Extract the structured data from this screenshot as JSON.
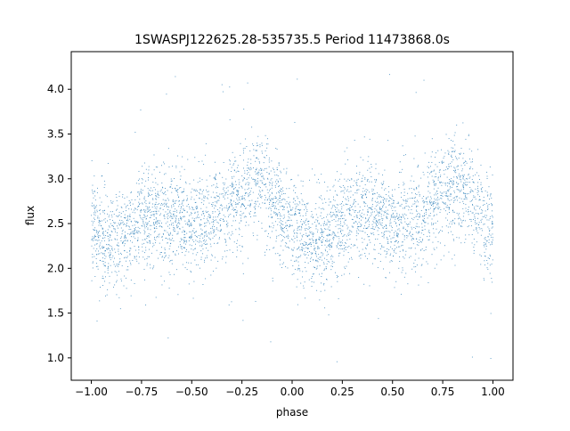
{
  "chart_data": {
    "type": "scatter",
    "title": "1SWASPJ122625.28-535735.5 Period 11473868.0s",
    "xlabel": "phase",
    "ylabel": "flux",
    "xlim": [
      -1.1,
      1.1
    ],
    "ylim": [
      0.75,
      4.42
    ],
    "xticks": [
      -1.0,
      -0.75,
      -0.5,
      -0.25,
      0.0,
      0.25,
      0.5,
      0.75,
      1.0
    ],
    "xtick_labels": [
      "−1.00",
      "−0.75",
      "−0.50",
      "−0.25",
      "0.00",
      "0.25",
      "0.50",
      "0.75",
      "1.00"
    ],
    "yticks": [
      1.0,
      1.5,
      2.0,
      2.5,
      3.0,
      3.5,
      4.0
    ],
    "ytick_labels": [
      "1.0",
      "1.5",
      "2.0",
      "2.5",
      "3.0",
      "3.5",
      "4.0"
    ],
    "grid": false,
    "legend": "none",
    "marker_color": "#1f77b4",
    "series": [
      {
        "phase_range": [
          -1.0,
          1.0
        ],
        "flux_profile": {
          "phase": [
            0.0,
            0.05,
            0.1,
            0.15,
            0.2,
            0.25,
            0.3,
            0.35,
            0.4,
            0.45,
            0.5,
            0.55,
            0.6,
            0.65,
            0.7,
            0.75,
            0.8,
            0.85,
            0.9,
            0.95,
            1.0
          ],
          "median_flux": [
            2.45,
            2.4,
            2.3,
            2.35,
            2.45,
            2.55,
            2.6,
            2.6,
            2.6,
            2.55,
            2.5,
            2.5,
            2.55,
            2.6,
            2.7,
            2.8,
            2.95,
            2.9,
            2.75,
            2.6,
            2.45
          ],
          "spread": 0.28
        },
        "outlier_range": [
          0.95,
          4.25
        ]
      }
    ]
  }
}
